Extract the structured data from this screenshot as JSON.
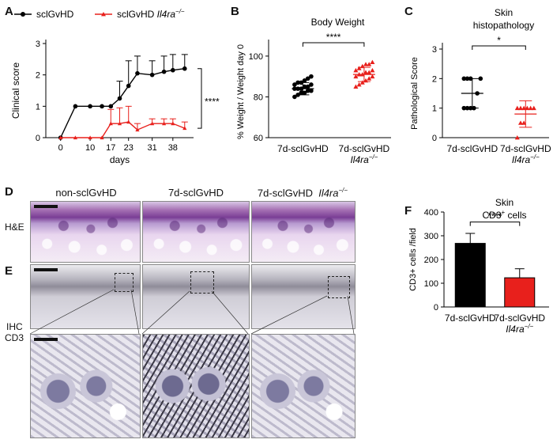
{
  "panels": {
    "A": "A",
    "B": "B",
    "C": "C",
    "D": "D",
    "E": "E",
    "F": "F"
  },
  "chart_data": [
    {
      "type": "line",
      "panel": "A",
      "legend": [
        "sclGvHD",
        "sclGvHD Il4ra−/−"
      ],
      "ylabel": "Clinical  score",
      "xlabel": "days",
      "x_ticks": [
        "0",
        "10",
        "17",
        "23",
        "31",
        "38"
      ],
      "y_ticks": [
        "0",
        "1",
        "2",
        "3"
      ],
      "ylim": [
        0,
        3
      ],
      "xlim": [
        -5,
        45
      ],
      "significance": "****",
      "series": [
        {
          "name": "sclGvHD",
          "color": "#000000",
          "x": [
            0,
            5,
            10,
            14,
            17,
            20,
            23,
            26,
            31,
            35,
            38,
            42
          ],
          "y": [
            0,
            1,
            1,
            1,
            1,
            1.25,
            1.65,
            2.05,
            2.0,
            2.1,
            2.15,
            2.2
          ],
          "err": [
            0,
            0,
            0,
            0,
            0,
            0.55,
            0.8,
            0.55,
            0.45,
            0.5,
            0.5,
            0.45
          ]
        },
        {
          "name": "sclGvHD Il4ra−/−",
          "color": "#e8201c",
          "x": [
            0,
            5,
            10,
            14,
            17,
            20,
            23,
            26,
            31,
            35,
            38,
            42
          ],
          "y": [
            0,
            0,
            0,
            0,
            0.45,
            0.45,
            0.5,
            0.25,
            0.45,
            0.45,
            0.45,
            0.3
          ],
          "err": [
            0,
            0,
            0,
            0,
            0.45,
            0.5,
            0.5,
            0.2,
            0.15,
            0.15,
            0.15,
            0.2
          ]
        }
      ]
    },
    {
      "type": "scatter",
      "panel": "B",
      "title": "Body Weight",
      "ylabel": "% Weight / Weight day 0",
      "categories": [
        "7d-sclGvHD",
        "7d-sclGvHD Il4ra−/−"
      ],
      "y_ticks": [
        "60",
        "80",
        "100"
      ],
      "ylim": [
        60,
        105
      ],
      "significance": "****",
      "series": [
        {
          "name": "7d-sclGvHD",
          "color": "#000000",
          "marker": "circle",
          "mean": 84,
          "sd": 3,
          "values": [
            80,
            81,
            82,
            82,
            83,
            83,
            84,
            84,
            84,
            85,
            85,
            86,
            86,
            87,
            87,
            88,
            89,
            90
          ]
        },
        {
          "name": "7d-sclGvHD Il4ra−/−",
          "color": "#e8201c",
          "marker": "triangle",
          "mean": 91,
          "sd": 3.5,
          "values": [
            85,
            86,
            87,
            88,
            89,
            90,
            90,
            91,
            91,
            92,
            92,
            93,
            93,
            94,
            95,
            96,
            96,
            97
          ]
        }
      ]
    },
    {
      "type": "scatter",
      "panel": "C",
      "title": [
        "Skin",
        "histopathology"
      ],
      "ylabel": "Pathological Score",
      "categories": [
        "7d-sclGvHD",
        "7d-sclGvHD Il4ra−/−"
      ],
      "y_ticks": [
        "0",
        "1",
        "2",
        "3"
      ],
      "ylim": [
        0,
        3
      ],
      "significance": "*",
      "series": [
        {
          "name": "7d-sclGvHD",
          "color": "#000000",
          "marker": "circle",
          "mean": 1.5,
          "sd": 0.5,
          "values": [
            1,
            1,
            1,
            1,
            1.5,
            2,
            2,
            2,
            2
          ]
        },
        {
          "name": "7d-sclGvHD Il4ra−/−",
          "color": "#e8201c",
          "marker": "triangle",
          "mean": 0.8,
          "sd": 0.45,
          "values": [
            0,
            0.5,
            0.5,
            1,
            1,
            1,
            1,
            1,
            1
          ]
        }
      ]
    },
    {
      "type": "bar",
      "panel": "F",
      "title": [
        "Skin",
        "CD3+ cells"
      ],
      "ylabel": "CD3+ cells /field",
      "categories": [
        "7d-sclGvHD",
        "7d-sclGvHD Il4ra−/−"
      ],
      "y_ticks": [
        "0",
        "100",
        "200",
        "300",
        "400"
      ],
      "ylim": [
        0,
        400
      ],
      "significance": "****",
      "values": [
        268,
        123
      ],
      "errors": [
        42,
        38
      ],
      "colors": [
        "#000000",
        "#e8201c"
      ]
    }
  ],
  "histology": {
    "column_headers": [
      "non-sclGvHD",
      "7d-sclGvHD",
      "7d-sclGvHD  Il4ra−/−"
    ],
    "row_he": "H&E",
    "row_ihc": [
      "IHC",
      "CD3"
    ]
  }
}
